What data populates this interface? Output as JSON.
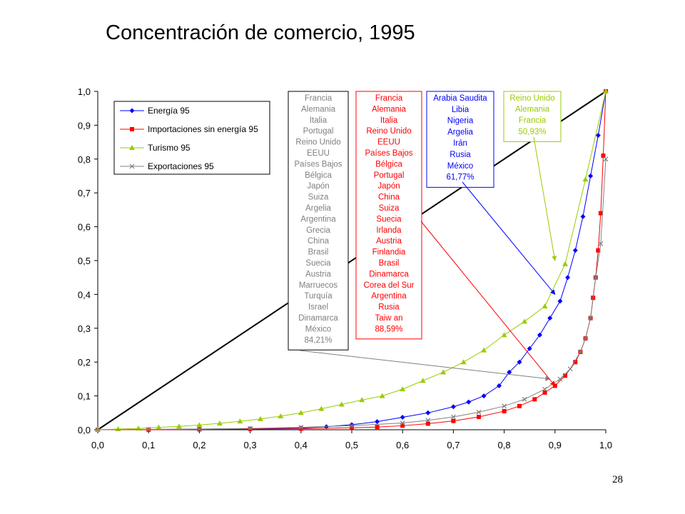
{
  "slide": {
    "title": "Concentración de comercio, 1995",
    "page_number": "28"
  },
  "colors": {
    "energia": "#0000FF",
    "importaciones": "#FF0000",
    "turismo": "#99CC00",
    "exportaciones": "#808080",
    "diagonal": "#000000"
  },
  "chart_data": {
    "type": "line",
    "title": "",
    "xlabel": "",
    "ylabel": "",
    "xlim": [
      0,
      1
    ],
    "ylim": [
      0,
      1
    ],
    "x_ticks": [
      "0,0",
      "0,1",
      "0,2",
      "0,3",
      "0,4",
      "0,5",
      "0,6",
      "0,7",
      "0,8",
      "0,9",
      "1,0"
    ],
    "y_ticks": [
      "0,0",
      "0,1",
      "0,2",
      "0,3",
      "0,4",
      "0,5",
      "0,6",
      "0,7",
      "0,8",
      "0,9",
      "1,0"
    ],
    "grid": false,
    "legend_position": "top-left",
    "equality_line": {
      "x": [
        0,
        1
      ],
      "y": [
        0,
        1
      ]
    },
    "series": [
      {
        "name": "Energía 95",
        "color_key": "energia",
        "marker": "diamond",
        "x": [
          0,
          0.1,
          0.2,
          0.3,
          0.4,
          0.45,
          0.5,
          0.55,
          0.6,
          0.65,
          0.7,
          0.73,
          0.76,
          0.79,
          0.81,
          0.83,
          0.85,
          0.87,
          0.89,
          0.91,
          0.925,
          0.94,
          0.955,
          0.97,
          0.985,
          1.0
        ],
        "y": [
          0,
          0.001,
          0.002,
          0.003,
          0.005,
          0.009,
          0.015,
          0.024,
          0.037,
          0.05,
          0.068,
          0.082,
          0.1,
          0.13,
          0.17,
          0.2,
          0.24,
          0.28,
          0.33,
          0.38,
          0.45,
          0.53,
          0.63,
          0.75,
          0.87,
          1.0
        ]
      },
      {
        "name": "Importaciones sin energía 95",
        "color_key": "importaciones",
        "marker": "square",
        "x": [
          0,
          0.1,
          0.2,
          0.3,
          0.4,
          0.5,
          0.55,
          0.6,
          0.65,
          0.7,
          0.75,
          0.8,
          0.83,
          0.86,
          0.88,
          0.9,
          0.92,
          0.94,
          0.95,
          0.96,
          0.97,
          0.975,
          0.98,
          0.985,
          0.99,
          0.995,
          1.0
        ],
        "y": [
          0,
          0,
          0.001,
          0.002,
          0.003,
          0.006,
          0.008,
          0.012,
          0.018,
          0.026,
          0.038,
          0.055,
          0.07,
          0.09,
          0.11,
          0.13,
          0.16,
          0.2,
          0.23,
          0.27,
          0.33,
          0.39,
          0.45,
          0.53,
          0.64,
          0.81,
          1.0
        ]
      },
      {
        "name": "Turismo 95",
        "color_key": "turismo",
        "marker": "triangle",
        "x": [
          0,
          0.04,
          0.08,
          0.12,
          0.16,
          0.2,
          0.24,
          0.28,
          0.32,
          0.36,
          0.4,
          0.44,
          0.48,
          0.52,
          0.56,
          0.6,
          0.64,
          0.68,
          0.72,
          0.76,
          0.8,
          0.84,
          0.88,
          0.92,
          0.96,
          1.0
        ],
        "y": [
          0,
          0.002,
          0.004,
          0.007,
          0.01,
          0.014,
          0.019,
          0.025,
          0.032,
          0.04,
          0.05,
          0.062,
          0.075,
          0.088,
          0.1,
          0.12,
          0.145,
          0.17,
          0.2,
          0.235,
          0.28,
          0.32,
          0.365,
          0.49,
          0.74,
          1.0
        ]
      },
      {
        "name": "Exportaciones 95",
        "color_key": "exportaciones",
        "marker": "x",
        "x": [
          0,
          0.1,
          0.2,
          0.3,
          0.4,
          0.5,
          0.6,
          0.65,
          0.7,
          0.75,
          0.8,
          0.84,
          0.88,
          0.91,
          0.93,
          0.95,
          0.96,
          0.97,
          0.98,
          0.99,
          1.0
        ],
        "y": [
          0,
          0.001,
          0.002,
          0.004,
          0.007,
          0.012,
          0.02,
          0.028,
          0.038,
          0.052,
          0.07,
          0.09,
          0.12,
          0.15,
          0.18,
          0.23,
          0.27,
          0.33,
          0.45,
          0.55,
          0.8
        ]
      }
    ],
    "annotations": [
      {
        "color_key": "exportaciones",
        "text_color": "#808080",
        "items": [
          "Francia",
          "Alemania",
          "Italia",
          "Portugal",
          "Reino Unido",
          "EEUU",
          "Países Bajos",
          "Bélgica",
          "Japón",
          "Suiza",
          "Argelia",
          "Argentina",
          "Grecia",
          "China",
          "Brasil",
          "Suecia",
          "Austria",
          "Marruecos",
          "Turquía",
          "Israel",
          "Dinamarca",
          "México",
          "84,21%"
        ],
        "border": "#000000",
        "arrow_color": "#808080",
        "target": {
          "x": 0.89,
          "y": 0.15
        }
      },
      {
        "color_key": "importaciones",
        "text_color": "#FF0000",
        "items": [
          "Francia",
          "Alemania",
          "Italia",
          "Reino Unido",
          "EEUU",
          "Países Bajos",
          "Bélgica",
          "Portugal",
          "Japón",
          "China",
          "Suiza",
          "Suecia",
          "Irlanda",
          "Austria",
          "Finlandia",
          "Brasil",
          "Dinamarca",
          "Corea del Sur",
          "Argentina",
          "Rusia",
          "Taiw an",
          "88,59%"
        ],
        "border": "#FF0000",
        "arrow_color": "#FF0000",
        "target": {
          "x": 0.9,
          "y": 0.13
        }
      },
      {
        "color_key": "energia",
        "text_color": "#0000FF",
        "items": [
          "Arabia Saudita",
          "Libia",
          "Nigeria",
          "Argelia",
          "Irán",
          "Rusia",
          "México",
          "61,77%"
        ],
        "border": "#0000FF",
        "arrow_color": "#0000FF",
        "target": {
          "x": 0.9,
          "y": 0.4
        }
      },
      {
        "color_key": "turismo",
        "text_color": "#99CC00",
        "items": [
          "Reino Unido",
          "Alemania",
          "Francia",
          "50,93%"
        ],
        "border": "#99CC00",
        "arrow_color": "#99CC00",
        "target": {
          "x": 0.9,
          "y": 0.5
        }
      }
    ]
  }
}
